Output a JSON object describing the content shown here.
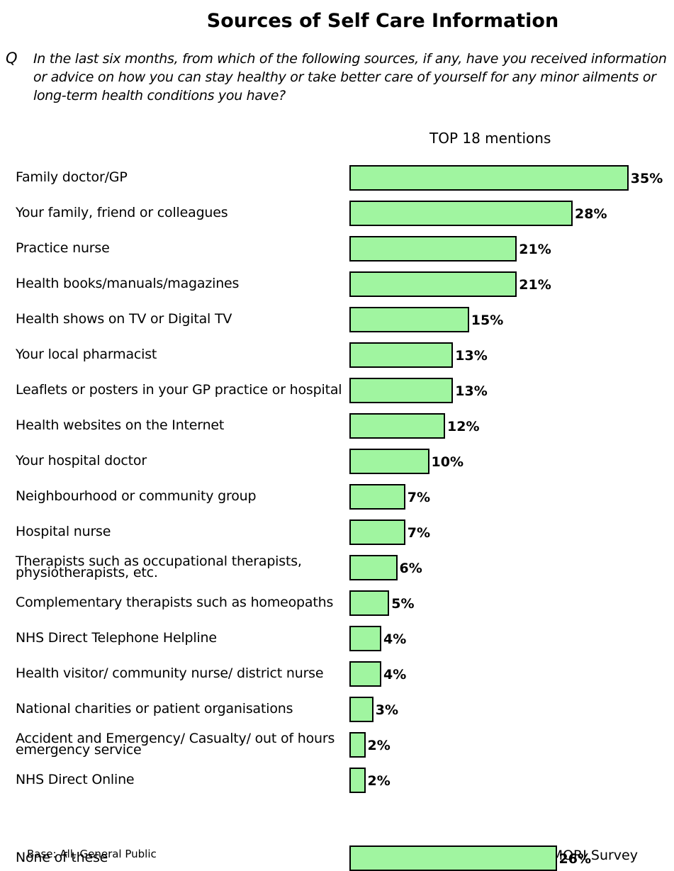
{
  "chart_data": {
    "type": "barh",
    "title": "Sources of Self Care Information",
    "question_marker": "Q",
    "question": "In the last six months, from which of the following sources, if any, have you received information or advice on how you can stay healthy or take better care of yourself for any minor ailments or long-term health conditions you have?",
    "subtitle": "TOP 18 mentions",
    "categories": [
      "Family doctor/GP",
      "Your family, friend or colleagues",
      "Practice nurse",
      "Health books/manuals/magazines",
      "Health shows on TV or Digital TV",
      "Your local pharmacist",
      "Leaflets or posters in your GP practice or hospital",
      "Health websites on the Internet",
      "Your hospital doctor",
      "Neighbourhood or community group",
      "Hospital nurse",
      "Therapists such as occupational therapists, physiotherapists, etc.",
      "Complementary therapists such as homeopaths",
      "NHS Direct Telephone Helpline",
      "Health visitor/ community nurse/ district nurse",
      "National charities or patient organisations",
      "Accident and Emergency/ Casualty/ out of hours emergency service",
      "NHS Direct Online",
      "None of these"
    ],
    "values": [
      35,
      28,
      21,
      21,
      15,
      13,
      13,
      12,
      10,
      7,
      7,
      6,
      5,
      4,
      4,
      3,
      2,
      2,
      26
    ],
    "value_labels": [
      "35%",
      "28%",
      "21%",
      "21%",
      "15%",
      "13%",
      "13%",
      "12%",
      "10%",
      "7%",
      "7%",
      "6%",
      "5%",
      "4%",
      "4%",
      "3%",
      "2%",
      "2%",
      "26%"
    ],
    "color": "#a0f5a0",
    "base_note": "Base: All, General Public",
    "source": "Source: MORI Survey"
  }
}
